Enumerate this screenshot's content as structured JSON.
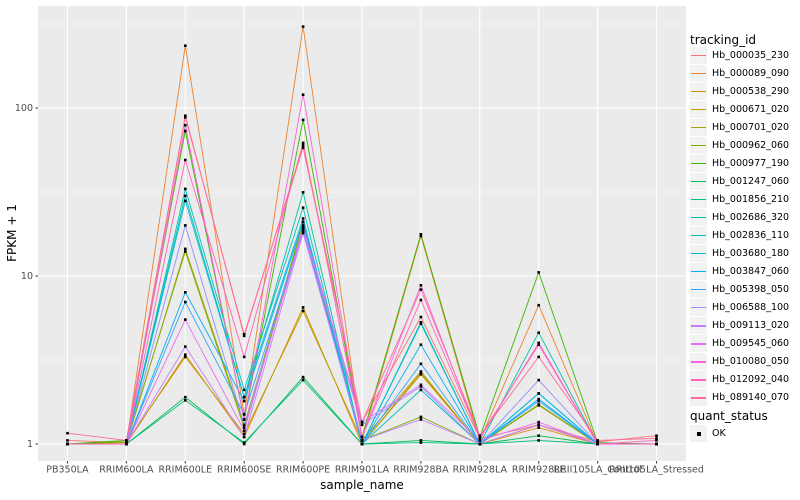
{
  "chart_data": {
    "type": "line",
    "title": "",
    "xlabel": "sample_name",
    "ylabel": "FPKM + 1",
    "yscale": "log10",
    "ylim": [
      1,
      400
    ],
    "ytick_labels": [
      "1",
      "10",
      "100"
    ],
    "grid": "on",
    "legend_position": "right",
    "categories": [
      "PB350LA",
      "RRIM600LA",
      "RRIM600LE",
      "RRIM600SE",
      "RRIM600PE",
      "RRIM901LA",
      "RRIM928BA",
      "RRIM928LA",
      "RRIM928LE",
      "RRII105LA_Control",
      "RRII105LA_Stressed"
    ],
    "series": [
      {
        "name": "Hb_000035_230",
        "color": "#F8766D",
        "values": [
          1.05,
          1.02,
          88,
          4.5,
          58,
          1.35,
          5.7,
          1.08,
          1.3,
          1.03,
          1.12
        ]
      },
      {
        "name": "Hb_000089_090",
        "color": "#EA8331",
        "values": [
          1.0,
          1.0,
          235,
          1.5,
          305,
          1.05,
          17.3,
          1.05,
          6.7,
          1.0,
          1.0
        ]
      },
      {
        "name": "Hb_000538_290",
        "color": "#D89000",
        "values": [
          1.0,
          1.0,
          3.4,
          1.1,
          6.5,
          1.0,
          2.6,
          1.0,
          1.25,
          1.0,
          1.0
        ]
      },
      {
        "name": "Hb_000671_020",
        "color": "#C09B00",
        "values": [
          1.0,
          1.02,
          3.3,
          1.15,
          6.2,
          1.05,
          2.7,
          1.0,
          1.3,
          1.0,
          1.0
        ]
      },
      {
        "name": "Hb_000701_020",
        "color": "#A3A500",
        "values": [
          1.0,
          1.0,
          14.5,
          1.3,
          20,
          1.0,
          2.65,
          1.0,
          1.7,
          1.0,
          1.0
        ]
      },
      {
        "name": "Hb_000962_060",
        "color": "#7CAE00",
        "values": [
          1.0,
          1.03,
          14.0,
          1.25,
          21,
          1.05,
          1.45,
          1.0,
          1.72,
          1.0,
          1.0
        ]
      },
      {
        "name": "Hb_000977_190",
        "color": "#39B600",
        "values": [
          1.0,
          1.05,
          73,
          1.4,
          85,
          1.1,
          17.7,
          1.1,
          10.5,
          1.02,
          1.0
        ]
      },
      {
        "name": "Hb_001247_060",
        "color": "#00BB4E",
        "values": [
          1.0,
          1.0,
          1.9,
          1.0,
          2.5,
          1.0,
          1.05,
          1.0,
          1.12,
          1.0,
          1.0
        ]
      },
      {
        "name": "Hb_001856_210",
        "color": "#00BF7D",
        "values": [
          1.0,
          1.0,
          1.82,
          1.02,
          2.4,
          1.0,
          1.02,
          1.0,
          1.05,
          1.0,
          1.0
        ]
      },
      {
        "name": "Hb_002686_320",
        "color": "#00C1A3",
        "values": [
          1.0,
          1.0,
          30,
          1.9,
          31.5,
          1.0,
          5.3,
          1.0,
          4.6,
          1.0,
          1.0
        ]
      },
      {
        "name": "Hb_002836_110",
        "color": "#00BFC4",
        "values": [
          1.0,
          1.0,
          33,
          2.1,
          25.5,
          1.0,
          2.1,
          1.0,
          2.0,
          1.0,
          1.0
        ]
      },
      {
        "name": "Hb_003680_180",
        "color": "#00BAE0",
        "values": [
          1.0,
          1.0,
          28,
          1.9,
          22,
          1.0,
          5.2,
          1.0,
          2.0,
          1.0,
          1.0
        ]
      },
      {
        "name": "Hb_003847_060",
        "color": "#00B0F6",
        "values": [
          1.0,
          1.0,
          8.0,
          1.8,
          21,
          1.0,
          3.9,
          1.0,
          1.85,
          1.0,
          1.0
        ]
      },
      {
        "name": "Hb_005398_050",
        "color": "#35A2FF",
        "values": [
          1.0,
          1.0,
          7.0,
          1.5,
          19,
          1.0,
          3.0,
          1.0,
          1.8,
          1.0,
          1.0
        ]
      },
      {
        "name": "Hb_006588_100",
        "color": "#9590FF",
        "values": [
          1.0,
          1.0,
          20,
          1.3,
          18.5,
          1.3,
          2.2,
          1.0,
          2.4,
          1.0,
          1.0
        ]
      },
      {
        "name": "Hb_009113_020",
        "color": "#C77CFF",
        "values": [
          1.0,
          1.0,
          3.8,
          1.1,
          18,
          1.05,
          1.4,
          1.0,
          1.3,
          1.0,
          1.0
        ]
      },
      {
        "name": "Hb_009545_060",
        "color": "#E76BF3",
        "values": [
          1.0,
          1.0,
          5.5,
          1.2,
          19.5,
          1.35,
          2.25,
          1.05,
          1.35,
          1.0,
          1.0
        ]
      },
      {
        "name": "Hb_010080_050",
        "color": "#FA62DB",
        "values": [
          1.0,
          1.0,
          79,
          1.4,
          120,
          1.1,
          8.8,
          1.07,
          4.0,
          1.0,
          1.0
        ]
      },
      {
        "name": "Hb_012092_040",
        "color": "#FF62BC",
        "values": [
          1.0,
          1.0,
          49,
          3.3,
          62,
          1.1,
          7.2,
          1.1,
          3.9,
          1.0,
          1.05
        ]
      },
      {
        "name": "Hb_089140_070",
        "color": "#FF6A98",
        "values": [
          1.16,
          1.05,
          90,
          4.4,
          60,
          1.35,
          8.3,
          1.12,
          3.3,
          1.05,
          1.08
        ]
      }
    ]
  },
  "legend": {
    "tracking_title": "tracking_id",
    "quant_title": "quant_status",
    "quant_items": [
      {
        "label": "OK",
        "marker": "black-square"
      }
    ]
  },
  "style": {
    "panel_bg": "#EBEBEB",
    "grid_color": "#FFFFFF",
    "tick_label_color": "#4D4D4D",
    "point_color": "#000000",
    "key_bg": "#F2F2F2"
  }
}
